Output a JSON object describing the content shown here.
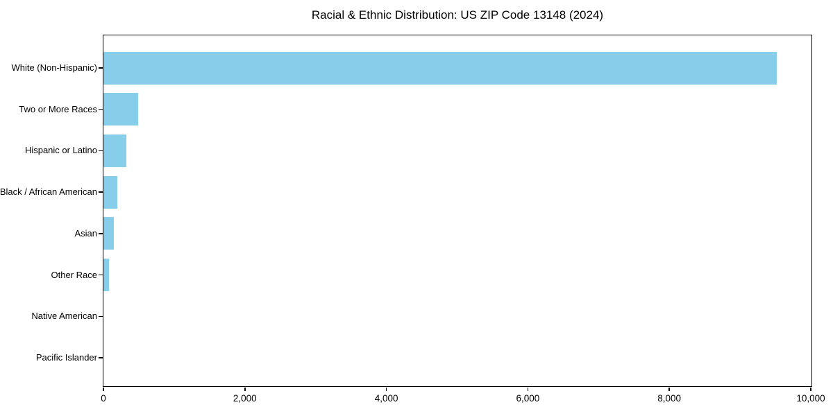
{
  "chart_title": "Racial & Ethnic Distribution: US ZIP Code 13148 (2024)",
  "chart_data": {
    "type": "bar",
    "orientation": "horizontal",
    "title": "Racial & Ethnic Distribution: US ZIP Code 13148 (2024)",
    "categories": [
      "White (Non-Hispanic)",
      "Two or More Races",
      "Hispanic or Latino",
      "Black / African American",
      "Asian",
      "Other Race",
      "Native American",
      "Pacific Islander"
    ],
    "values": [
      9520,
      490,
      320,
      200,
      145,
      80,
      0,
      0
    ],
    "xlabel": "",
    "ylabel": "",
    "xlim": [
      0,
      10000
    ],
    "x_ticks": [
      0,
      2000,
      4000,
      6000,
      8000,
      10000
    ],
    "x_tick_labels": [
      "0",
      "2,000",
      "4,000",
      "6,000",
      "8,000",
      "10,000"
    ],
    "bar_color": "#87CEEB",
    "spine_color": "#000000",
    "text_color": "#000000",
    "grid": false,
    "legend": false,
    "largest_category_on_top": true
  }
}
